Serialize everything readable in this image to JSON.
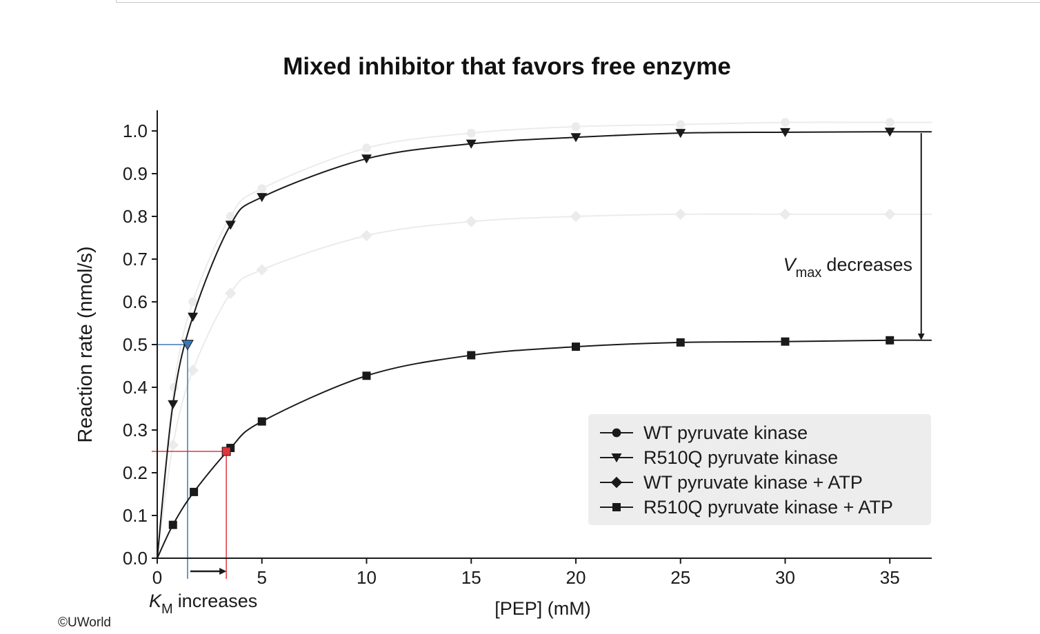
{
  "copyright": "©UWorld",
  "chart_data": {
    "type": "line",
    "title": "Mixed inhibitor that favors free enzyme",
    "xlabel": "[PEP] (mM)",
    "ylabel": "Reaction rate (nmol/s)",
    "xlim": [
      0,
      37
    ],
    "ylim": [
      0,
      1.05
    ],
    "x_ticks": [
      0,
      5,
      10,
      15,
      20,
      25,
      30,
      35
    ],
    "y_ticks": [
      "0.0",
      "0.1",
      "0.2",
      "0.3",
      "0.4",
      "0.5",
      "0.6",
      "0.7",
      "0.8",
      "0.9",
      "1.0"
    ],
    "legend_position": "bottom-right",
    "series": [
      {
        "name": "WT pyruvate kinase",
        "marker": "circle",
        "faded": true,
        "x": [
          0.8,
          1.7,
          3.5,
          5,
          10,
          15,
          20,
          25,
          30,
          35
        ],
        "y": [
          0.4,
          0.6,
          0.8,
          0.865,
          0.96,
          0.995,
          1.01,
          1.015,
          1.02,
          1.02
        ]
      },
      {
        "name": "R510Q pyruvate kinase",
        "marker": "triangle-down",
        "faded": false,
        "x": [
          0.75,
          1.7,
          3.5,
          5,
          10,
          15,
          20,
          25,
          30,
          35
        ],
        "y": [
          0.36,
          0.565,
          0.78,
          0.845,
          0.935,
          0.97,
          0.985,
          0.995,
          0.997,
          0.998
        ]
      },
      {
        "name": "WT pyruvate kinase + ATP",
        "marker": "diamond",
        "faded": true,
        "x": [
          0.75,
          1.7,
          3.5,
          5,
          10,
          15,
          20,
          25,
          30,
          35
        ],
        "y": [
          0.265,
          0.44,
          0.62,
          0.675,
          0.755,
          0.788,
          0.8,
          0.805,
          0.805,
          0.805
        ]
      },
      {
        "name": "R510Q pyruvate kinase + ATP",
        "marker": "square",
        "faded": false,
        "x": [
          0.75,
          1.75,
          3.5,
          5,
          10,
          15,
          20,
          25,
          30,
          35
        ],
        "y": [
          0.078,
          0.155,
          0.258,
          0.32,
          0.427,
          0.475,
          0.495,
          0.505,
          0.507,
          0.51
        ]
      }
    ],
    "annotations": {
      "vmax": {
        "symbol": "V",
        "subscript": "max",
        "text": "decreases",
        "from_y": 0.995,
        "to_y": 0.51,
        "x": 36.5
      },
      "km": {
        "symbol": "K",
        "subscript": "M",
        "text": "increases",
        "from_x": 1.45,
        "to_x": 3.3
      },
      "km_wt_marker": {
        "x": 1.45,
        "y": 0.5,
        "color": "#3a78b5"
      },
      "km_atp_marker": {
        "x": 3.3,
        "y": 0.25,
        "color": "#e0363c"
      }
    }
  }
}
